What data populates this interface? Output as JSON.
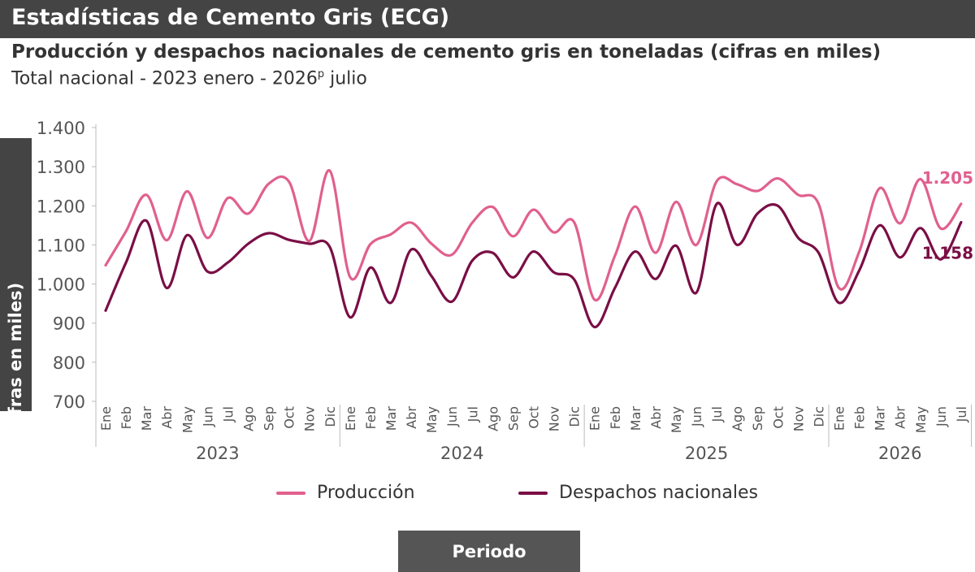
{
  "header": {
    "title": "Estadísticas de Cemento Gris (ECG)"
  },
  "colors": {
    "header_bg": "#444444",
    "produccion": "#e0608e",
    "despachos": "#7a0e45",
    "axis": "#bbbbbb"
  },
  "chart_data": {
    "type": "line",
    "title": "Producción y despachos nacionales de cemento gris en toneladas (cifras en miles)",
    "subtitle_main": "Total nacional - 2023 enero - 2026",
    "subtitle_sup": "p",
    "subtitle_tail": " julio",
    "ylabel": "Toneladas (Cifras en miles)",
    "xlabel": "Periodo",
    "ylim": [
      700,
      1400
    ],
    "yticks": [
      700,
      800,
      900,
      1000,
      1100,
      1200,
      1300,
      1400
    ],
    "ytick_labels": [
      "700",
      "800",
      "900",
      "1.000",
      "1.100",
      "1.200",
      "1.300",
      "1.400"
    ],
    "years": [
      {
        "label": "2023",
        "months": [
          "Ene",
          "Feb",
          "Mar",
          "Abr",
          "May",
          "Jun",
          "Jul",
          "Ago",
          "Sep",
          "Oct",
          "Nov",
          "Dic"
        ]
      },
      {
        "label": "2024",
        "months": [
          "Ene",
          "Feb",
          "Mar",
          "Abr",
          "May",
          "Jun",
          "Jul",
          "Ago",
          "Sep",
          "Oct",
          "Nov",
          "Dic"
        ]
      },
      {
        "label": "2025",
        "months": [
          "Ene",
          "Feb",
          "Mar",
          "Abr",
          "May",
          "Jun",
          "Jul",
          "Ago",
          "Sep",
          "Oct",
          "Nov",
          "Dic"
        ]
      },
      {
        "label": "2026",
        "months": [
          "Ene",
          "Feb",
          "Mar",
          "Abr",
          "May",
          "Jun",
          "Jul"
        ]
      }
    ],
    "grid": false,
    "legend_position": "bottom",
    "series": [
      {
        "name": "Producción",
        "color": "#e0608e",
        "end_label": "1.205",
        "values": [
          1048,
          1135,
          1228,
          1112,
          1237,
          1118,
          1220,
          1180,
          1256,
          1262,
          1110,
          1290,
          1018,
          1102,
          1127,
          1157,
          1103,
          1075,
          1157,
          1197,
          1122,
          1190,
          1132,
          1158,
          960,
          1072,
          1198,
          1080,
          1210,
          1100,
          1263,
          1255,
          1238,
          1270,
          1228,
          1205,
          990,
          1083,
          1245,
          1155,
          1268,
          1142,
          1205
        ]
      },
      {
        "name": "Despachos nacionales",
        "color": "#7a0e45",
        "end_label": "1.158",
        "values": [
          932,
          1055,
          1162,
          990,
          1125,
          1032,
          1055,
          1103,
          1130,
          1113,
          1103,
          1095,
          915,
          1042,
          952,
          1088,
          1020,
          955,
          1060,
          1080,
          1017,
          1083,
          1030,
          1012,
          890,
          990,
          1083,
          1013,
          1098,
          978,
          1205,
          1100,
          1180,
          1200,
          1118,
          1080,
          952,
          1035,
          1150,
          1068,
          1143,
          1063,
          1158
        ]
      }
    ]
  }
}
